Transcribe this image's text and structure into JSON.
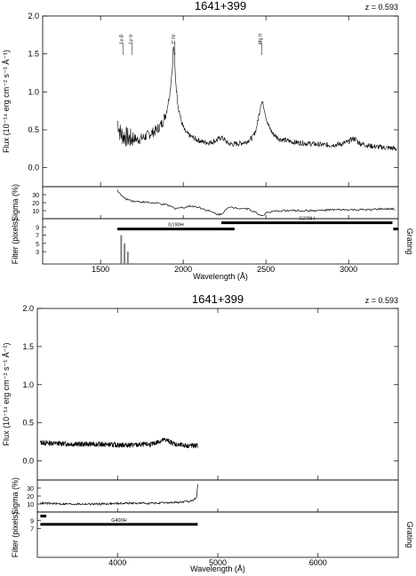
{
  "chart_data": [
    {
      "type": "line",
      "title": "1641+399",
      "redshift_label": "z = 0.593",
      "xlabel": "Wavelength (Å)",
      "flux_ylabel": "Flux (10⁻¹⁴ erg cm⁻² s⁻¹ Å⁻¹)",
      "sigma_ylabel": "Sigma (%)",
      "filter_ylabel": "Filter (pixels)",
      "grating_label": "Grating",
      "xlim": [
        1150,
        3300
      ],
      "xticks": [
        1500,
        2000,
        2500,
        3000
      ],
      "flux_ylim": [
        -0.25,
        2.0
      ],
      "flux_yticks": [
        0.0,
        0.5,
        1.0,
        1.5,
        2.0
      ],
      "sigma_ylim": [
        0,
        40
      ],
      "sigma_yticks": [
        10,
        20,
        30
      ],
      "filter_ylim": [
        0,
        11
      ],
      "filter_yticks": [
        3,
        5,
        7,
        9
      ],
      "emission_lines": [
        {
          "label": "Ly β",
          "x": 1635
        },
        {
          "label": "Ly α",
          "x": 1690
        },
        {
          "label": "C IV",
          "x": 1950
        },
        {
          "label": "Mg II",
          "x": 2475
        }
      ],
      "flux_series": {
        "name": "flux",
        "x": [
          1602,
          1620,
          1640,
          1660,
          1680,
          1700,
          1720,
          1740,
          1760,
          1780,
          1800,
          1820,
          1840,
          1860,
          1880,
          1900,
          1920,
          1935,
          1940,
          1945,
          1950,
          1958,
          1970,
          1990,
          2010,
          2040,
          2080,
          2120,
          2160,
          2200,
          2230,
          2250,
          2270,
          2300,
          2340,
          2380,
          2420,
          2440,
          2460,
          2470,
          2478,
          2490,
          2510,
          2540,
          2580,
          2620,
          2660,
          2700,
          2750,
          2800,
          2850,
          2900,
          2950,
          3000,
          3020,
          3040,
          3060,
          3100,
          3150,
          3200,
          3250,
          3290
        ],
        "y": [
          0.62,
          0.45,
          0.42,
          0.4,
          0.38,
          0.39,
          0.37,
          0.38,
          0.4,
          0.42,
          0.45,
          0.47,
          0.5,
          0.55,
          0.62,
          0.75,
          1.0,
          1.35,
          1.6,
          1.55,
          1.3,
          1.05,
          0.8,
          0.6,
          0.48,
          0.42,
          0.37,
          0.34,
          0.33,
          0.36,
          0.4,
          0.37,
          0.32,
          0.31,
          0.32,
          0.34,
          0.4,
          0.5,
          0.72,
          0.85,
          0.87,
          0.78,
          0.58,
          0.45,
          0.38,
          0.36,
          0.34,
          0.33,
          0.32,
          0.31,
          0.3,
          0.3,
          0.31,
          0.34,
          0.38,
          0.38,
          0.33,
          0.3,
          0.28,
          0.27,
          0.26,
          0.25
        ]
      },
      "sigma_series": {
        "name": "sigma",
        "x": [
          1602,
          1620,
          1650,
          1700,
          1750,
          1800,
          1850,
          1900,
          1950,
          2000,
          2050,
          2100,
          2150,
          2200,
          2230,
          2260,
          2300,
          2350,
          2400,
          2460,
          2480,
          2500,
          2550,
          2600,
          2700,
          2800,
          2900,
          3000,
          3100,
          3200,
          3280
        ],
        "y": [
          36,
          30,
          25,
          22,
          21,
          20,
          19,
          17,
          13,
          14,
          16,
          14,
          10,
          6,
          5,
          13,
          14,
          13,
          12,
          5,
          4,
          7,
          9,
          10,
          10,
          10,
          11,
          11,
          11,
          12,
          12
        ]
      },
      "gratings": [
        {
          "label": "G190H",
          "x_start": 1602,
          "x_end": 2310,
          "level": 8.5
        },
        {
          "label": "G270H",
          "x_start": 2230,
          "x_end": 3265,
          "level": 10
        },
        {
          "label": "",
          "x_start": 3270,
          "x_end": 3300,
          "level": 8.5
        }
      ],
      "filter_bars": [
        {
          "x": 1625,
          "height": 7
        },
        {
          "x": 1645,
          "height": 5
        },
        {
          "x": 1665,
          "height": 3
        }
      ]
    },
    {
      "type": "line",
      "title": "1641+399",
      "redshift_label": "z = 0.593",
      "xlabel": "Wavelength (Å)",
      "flux_ylabel": "Flux (10⁻¹⁴ erg cm⁻² s⁻¹ Å⁻¹)",
      "sigma_ylabel": "Sigma (%)",
      "filter_ylabel": "Filter (pixels)",
      "grating_label": "Grating",
      "xlim": [
        3200,
        6800
      ],
      "xticks": [
        4000,
        5000,
        6000
      ],
      "flux_ylim": [
        -0.25,
        2.0
      ],
      "flux_yticks": [
        0.0,
        0.5,
        1.0,
        1.5,
        2.0
      ],
      "sigma_ylim": [
        0,
        40
      ],
      "sigma_yticks": [
        10,
        20,
        30
      ],
      "filter_ylim": [
        0,
        11
      ],
      "filter_yticks": [
        7,
        9
      ],
      "flux_series": {
        "name": "flux",
        "x": [
          3230,
          3400,
          3600,
          3800,
          4000,
          4200,
          4350,
          4420,
          4480,
          4540,
          4600,
          4700,
          4800
        ],
        "y": [
          0.24,
          0.23,
          0.22,
          0.22,
          0.21,
          0.21,
          0.22,
          0.26,
          0.28,
          0.24,
          0.21,
          0.2,
          0.2
        ]
      },
      "sigma_series": {
        "name": "sigma",
        "x": [
          3230,
          3500,
          3800,
          4100,
          4400,
          4600,
          4700,
          4760,
          4790,
          4800
        ],
        "y": [
          11,
          10,
          10,
          11,
          11,
          12,
          13,
          15,
          20,
          35
        ]
      },
      "gratings": [
        {
          "label": "G400H",
          "x_start": 3230,
          "x_end": 4800,
          "level": 8
        },
        {
          "label": "",
          "x_start": 3230,
          "x_end": 3290,
          "level": 10
        }
      ],
      "filter_bars": []
    }
  ]
}
